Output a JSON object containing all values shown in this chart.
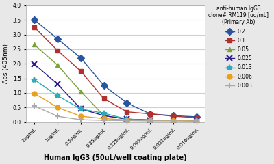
{
  "x_labels": [
    "2ug/mL",
    "1ug/mL",
    "0.5ug/mL",
    "0.25ug/mL",
    "0.125ug/mL",
    "0.063ug/mL",
    "0.031ug/mL",
    "0.016ug/mL"
  ],
  "series": [
    {
      "label": "0.2",
      "color": "#2955a0",
      "marker": "D",
      "values": [
        3.5,
        2.85,
        2.2,
        1.25,
        0.65,
        0.28,
        0.22,
        0.18
      ]
    },
    {
      "label": "0.1",
      "color": "#b03030",
      "marker": "s",
      "values": [
        3.25,
        2.45,
        1.75,
        0.8,
        0.35,
        0.28,
        0.2,
        0.15
      ]
    },
    {
      "label": "0.05",
      "color": "#7aa13a",
      "marker": "^",
      "values": [
        2.65,
        1.95,
        1.05,
        0.22,
        0.1,
        0.07,
        0.06,
        0.05
      ]
    },
    {
      "label": "0.025",
      "color": "#2e1a8c",
      "marker": "x",
      "values": [
        1.98,
        1.3,
        0.45,
        0.22,
        0.1,
        0.07,
        0.06,
        0.05
      ]
    },
    {
      "label": "0.013",
      "color": "#2eaabb",
      "marker": "*",
      "values": [
        1.45,
        0.9,
        0.45,
        0.3,
        0.1,
        0.07,
        0.06,
        0.05
      ]
    },
    {
      "label": "0.006",
      "color": "#e8a020",
      "marker": "o",
      "values": [
        0.98,
        0.5,
        0.2,
        0.12,
        0.07,
        0.06,
        0.05,
        0.04
      ]
    },
    {
      "label": "0.003",
      "color": "#aaaaaa",
      "marker": "+",
      "values": [
        0.55,
        0.2,
        0.08,
        0.06,
        0.05,
        0.04,
        0.04,
        0.03
      ]
    }
  ],
  "xlabel": "Human IgG3 (50uL/well coating plate)",
  "ylabel": "Abs (405nm)",
  "ylim": [
    0,
    4
  ],
  "yticks": [
    0,
    0.5,
    1,
    1.5,
    2,
    2.5,
    3,
    3.5,
    4
  ],
  "legend_title": "anti-human IgG3\nclone# RM119 [ug/mL]\n(Primary Ab)",
  "fig_background_color": "#e8e8e8",
  "plot_background_color": "#ffffff",
  "grid_color": "#d0d0d0"
}
